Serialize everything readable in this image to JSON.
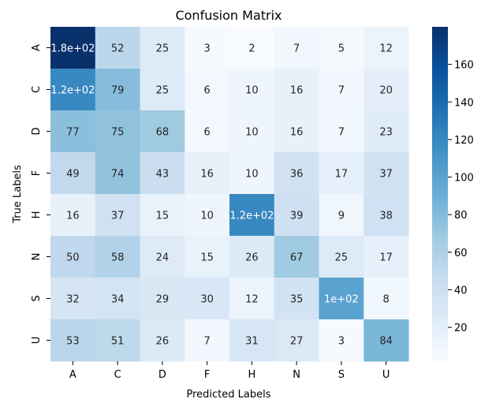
{
  "chart_data": {
    "type": "heatmap",
    "title": "Confusion Matrix",
    "xlabel": "Predicted Labels",
    "ylabel": "True Labels",
    "x_categories": [
      "A",
      "C",
      "D",
      "F",
      "H",
      "N",
      "S",
      "U"
    ],
    "y_categories": [
      "A",
      "C",
      "D",
      "F",
      "H",
      "N",
      "S",
      "U"
    ],
    "values": [
      [
        180,
        52,
        25,
        3,
        2,
        7,
        5,
        12
      ],
      [
        120,
        79,
        25,
        6,
        10,
        16,
        7,
        20
      ],
      [
        77,
        75,
        68,
        6,
        10,
        16,
        7,
        23
      ],
      [
        49,
        74,
        43,
        16,
        10,
        36,
        17,
        37
      ],
      [
        16,
        37,
        15,
        10,
        120,
        39,
        9,
        38
      ],
      [
        50,
        58,
        24,
        15,
        26,
        67,
        25,
        17
      ],
      [
        32,
        34,
        29,
        30,
        12,
        35,
        100,
        8
      ],
      [
        53,
        51,
        26,
        7,
        31,
        27,
        3,
        84
      ]
    ],
    "annotations": [
      [
        "1.8e+02",
        "52",
        "25",
        "3",
        "2",
        "7",
        "5",
        "12"
      ],
      [
        "1.2e+02",
        "79",
        "25",
        "6",
        "10",
        "16",
        "7",
        "20"
      ],
      [
        "77",
        "75",
        "68",
        "6",
        "10",
        "16",
        "7",
        "23"
      ],
      [
        "49",
        "74",
        "43",
        "16",
        "10",
        "36",
        "17",
        "37"
      ],
      [
        "16",
        "37",
        "15",
        "10",
        "1.2e+02",
        "39",
        "9",
        "38"
      ],
      [
        "50",
        "58",
        "24",
        "15",
        "26",
        "67",
        "25",
        "17"
      ],
      [
        "32",
        "34",
        "29",
        "30",
        "12",
        "35",
        "1e+02",
        "8"
      ],
      [
        "53",
        "51",
        "26",
        "7",
        "31",
        "27",
        "3",
        "84"
      ]
    ],
    "colormap": "Blues",
    "color_range": [
      2,
      180
    ],
    "colorbar_ticks": [
      20,
      40,
      60,
      80,
      100,
      120,
      140,
      160
    ]
  }
}
